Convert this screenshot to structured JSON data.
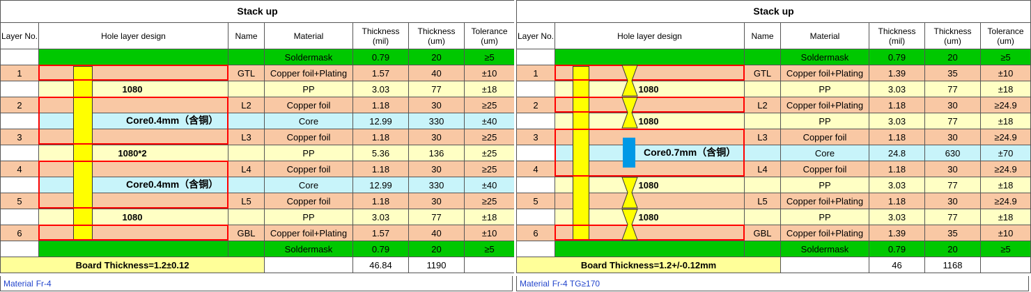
{
  "left": {
    "title": "Stack up",
    "headers": {
      "layer": "Layer No.",
      "hole": "Hole layer design",
      "name": "Name",
      "material": "Material",
      "thick_mil": [
        "Thickness",
        "(mil)"
      ],
      "thick_um": [
        "Thickness",
        "(um)"
      ],
      "tol": [
        "Tolerance",
        "(um)"
      ]
    },
    "rows": [
      {
        "layer": "",
        "hole": "",
        "name": "",
        "material": "Soldermask",
        "mil": "0.79",
        "um": "20",
        "tol": "≥5",
        "color": "g"
      },
      {
        "layer": "1",
        "hole": "",
        "name": "GTL",
        "material": "Copper foil+Plating",
        "mil": "1.57",
        "um": "40",
        "tol": "±10",
        "color": "o"
      },
      {
        "layer": "",
        "hole": "1080",
        "name": "",
        "material": "PP",
        "mil": "3.03",
        "um": "77",
        "tol": "±18",
        "color": "y"
      },
      {
        "layer": "2",
        "hole": "",
        "name": "L2",
        "material": "Copper foil",
        "mil": "1.18",
        "um": "30",
        "tol": "≥25",
        "color": "o"
      },
      {
        "layer": "",
        "hole": "",
        "name": "",
        "material": "Core",
        "mil": "12.99",
        "um": "330",
        "tol": "±40",
        "color": "c"
      },
      {
        "layer": "3",
        "hole": "",
        "name": "L3",
        "material": "Copper foil",
        "mil": "1.18",
        "um": "30",
        "tol": "≥25",
        "color": "o"
      },
      {
        "layer": "",
        "hole": "1080*2",
        "name": "",
        "material": "PP",
        "mil": "5.36",
        "um": "136",
        "tol": "±25",
        "color": "y"
      },
      {
        "layer": "4",
        "hole": "",
        "name": "L4",
        "material": "Copper foil",
        "mil": "1.18",
        "um": "30",
        "tol": "≥25",
        "color": "o"
      },
      {
        "layer": "",
        "hole": "",
        "name": "",
        "material": "Core",
        "mil": "12.99",
        "um": "330",
        "tol": "±40",
        "color": "c"
      },
      {
        "layer": "5",
        "hole": "",
        "name": "L5",
        "material": "Copper foil",
        "mil": "1.18",
        "um": "30",
        "tol": "≥25",
        "color": "o"
      },
      {
        "layer": "",
        "hole": "1080",
        "name": "",
        "material": "PP",
        "mil": "3.03",
        "um": "77",
        "tol": "±18",
        "color": "y"
      },
      {
        "layer": "6",
        "hole": "",
        "name": "GBL",
        "material": "Copper foil+Plating",
        "mil": "1.57",
        "um": "40",
        "tol": "±10",
        "color": "o"
      },
      {
        "layer": "",
        "hole": "",
        "name": "",
        "material": "Soldermask",
        "mil": "0.79",
        "um": "20",
        "tol": "≥5",
        "color": "g"
      }
    ],
    "cores": [
      "Core0.4mm（含铜）",
      "Core0.4mm（含铜）"
    ],
    "board_thickness": "Board Thickness=1.2±0.12",
    "total_mil": "46.84",
    "total_um": "1190",
    "footer_label": "Material",
    "footer_value": "Fr-4"
  },
  "right": {
    "title": "Stack up",
    "headers": {
      "layer": "Layer No.",
      "hole": "Hole layer design",
      "name": "Name",
      "material": "Material",
      "thick_mil": [
        "Thickness",
        "(mil)"
      ],
      "thick_um": [
        "Thickness",
        "(um)"
      ],
      "tol": [
        "Tolerance",
        "(um)"
      ]
    },
    "rows": [
      {
        "layer": "",
        "hole": "",
        "name": "",
        "material": "Soldermask",
        "mil": "0.79",
        "um": "20",
        "tol": "≥5",
        "color": "g"
      },
      {
        "layer": "1",
        "hole": "",
        "name": "GTL",
        "material": "Copper foil+Plating",
        "mil": "1.39",
        "um": "35",
        "tol": "±10",
        "color": "o"
      },
      {
        "layer": "",
        "hole": "1080",
        "name": "",
        "material": "PP",
        "mil": "3.03",
        "um": "77",
        "tol": "±18",
        "color": "y"
      },
      {
        "layer": "2",
        "hole": "",
        "name": "L2",
        "material": "Copper foil+Plating",
        "mil": "1.18",
        "um": "30",
        "tol": "≥24.9",
        "color": "o"
      },
      {
        "layer": "",
        "hole": "1080",
        "name": "",
        "material": "PP",
        "mil": "3.03",
        "um": "77",
        "tol": "±18",
        "color": "y"
      },
      {
        "layer": "3",
        "hole": "",
        "name": "L3",
        "material": "Copper foil",
        "mil": "1.18",
        "um": "30",
        "tol": "≥24.9",
        "color": "o"
      },
      {
        "layer": "",
        "hole": "",
        "name": "",
        "material": "Core",
        "mil": "24.8",
        "um": "630",
        "tol": "±70",
        "color": "c"
      },
      {
        "layer": "4",
        "hole": "",
        "name": "L4",
        "material": "Copper foil",
        "mil": "1.18",
        "um": "30",
        "tol": "≥24.9",
        "color": "o"
      },
      {
        "layer": "",
        "hole": "1080",
        "name": "",
        "material": "PP",
        "mil": "3.03",
        "um": "77",
        "tol": "±18",
        "color": "y"
      },
      {
        "layer": "5",
        "hole": "",
        "name": "L5",
        "material": "Copper foil+Plating",
        "mil": "1.18",
        "um": "30",
        "tol": "≥24.9",
        "color": "o"
      },
      {
        "layer": "",
        "hole": "1080",
        "name": "",
        "material": "PP",
        "mil": "3.03",
        "um": "77",
        "tol": "±18",
        "color": "y"
      },
      {
        "layer": "6",
        "hole": "",
        "name": "GBL",
        "material": "Copper foil+Plating",
        "mil": "1.39",
        "um": "35",
        "tol": "±10",
        "color": "o"
      },
      {
        "layer": "",
        "hole": "",
        "name": "",
        "material": "Soldermask",
        "mil": "0.79",
        "um": "20",
        "tol": "≥5",
        "color": "g"
      }
    ],
    "cores": [
      "Core0.7mm（含铜）"
    ],
    "board_thickness": "Board Thickness=1.2+/-0.12mm",
    "total_mil": "46",
    "total_um": "1168",
    "footer_label": "Material",
    "footer_value": "Fr-4  TG≥170"
  },
  "colors": {
    "soldermask": "#00c800",
    "copper": "#f9c8a4",
    "pp": "#ffffc4",
    "core": "#c8f4fa",
    "drill": "#ffff00",
    "outline": "#ff0000",
    "via": "#0099e6",
    "footer_text": "#2244cc"
  }
}
